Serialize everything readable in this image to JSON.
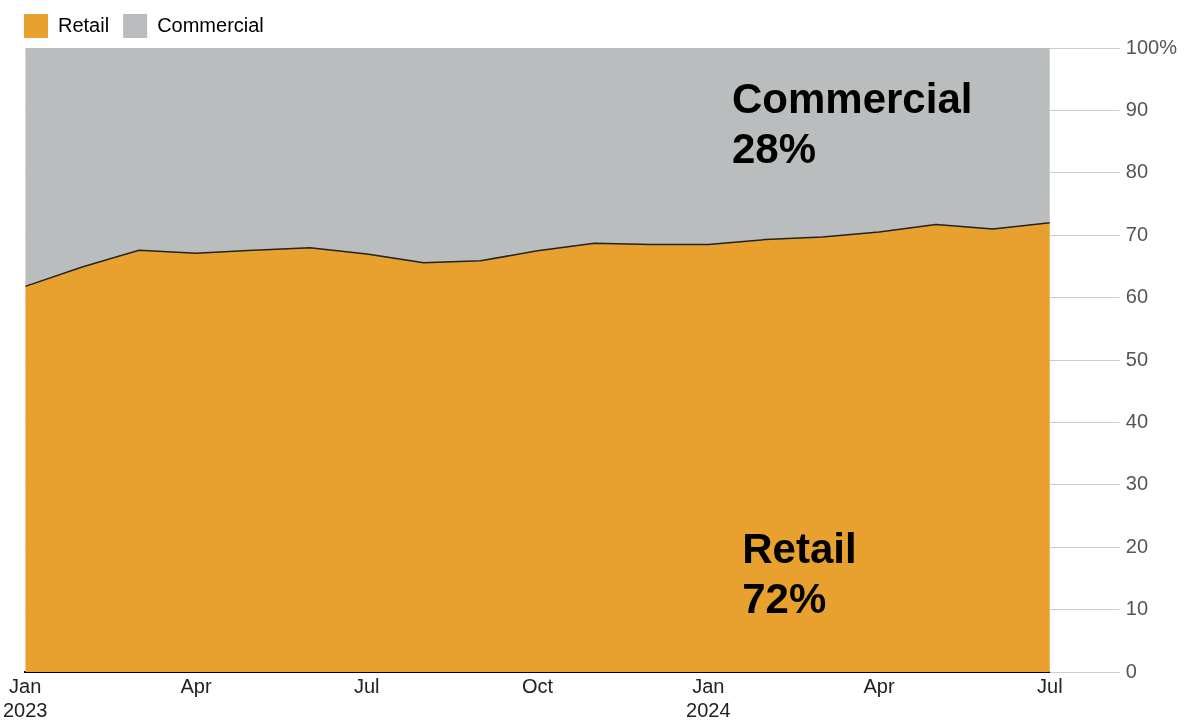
{
  "chart_data": {
    "type": "area",
    "stacked": true,
    "x": [
      "2023-01",
      "2023-02",
      "2023-03",
      "2023-04",
      "2023-05",
      "2023-06",
      "2023-07",
      "2023-08",
      "2023-09",
      "2023-10",
      "2023-11",
      "2023-12",
      "2024-01",
      "2024-02",
      "2024-03",
      "2024-04",
      "2024-05",
      "2024-06",
      "2024-07"
    ],
    "series": [
      {
        "name": "Retail",
        "color": "#e8a02e",
        "values": [
          61.8,
          64.9,
          67.6,
          67.1,
          67.6,
          68.0,
          67.0,
          65.6,
          65.9,
          67.5,
          68.7,
          68.5,
          68.5,
          69.3,
          69.7,
          70.5,
          71.7,
          71.0,
          72.0
        ]
      },
      {
        "name": "Commercial",
        "color": "#babdbe",
        "values": [
          38.2,
          35.1,
          32.4,
          32.9,
          32.4,
          32.0,
          33.0,
          34.4,
          34.1,
          32.5,
          31.3,
          31.5,
          31.5,
          30.7,
          30.3,
          29.5,
          28.3,
          29.0,
          28.0
        ]
      }
    ],
    "xlim": [
      "2023-01",
      "2024-07"
    ],
    "xticks": [
      {
        "value": "2023-01",
        "label": "Jan\n2023"
      },
      {
        "value": "2023-04",
        "label": "Apr"
      },
      {
        "value": "2023-07",
        "label": "Jul"
      },
      {
        "value": "2023-10",
        "label": "Oct"
      },
      {
        "value": "2024-01",
        "label": "Jan\n2024"
      },
      {
        "value": "2024-04",
        "label": "Apr"
      },
      {
        "value": "2024-07",
        "label": "Jul"
      }
    ],
    "ylim": [
      0,
      100
    ],
    "yticks": [
      0,
      10,
      20,
      30,
      40,
      50,
      60,
      70,
      80,
      90,
      {
        "value": 100,
        "label": "100%"
      }
    ],
    "grid": "y",
    "legend": "top left",
    "annotations": [
      "Commercial\n28%",
      "Retail\n72%"
    ]
  }
}
